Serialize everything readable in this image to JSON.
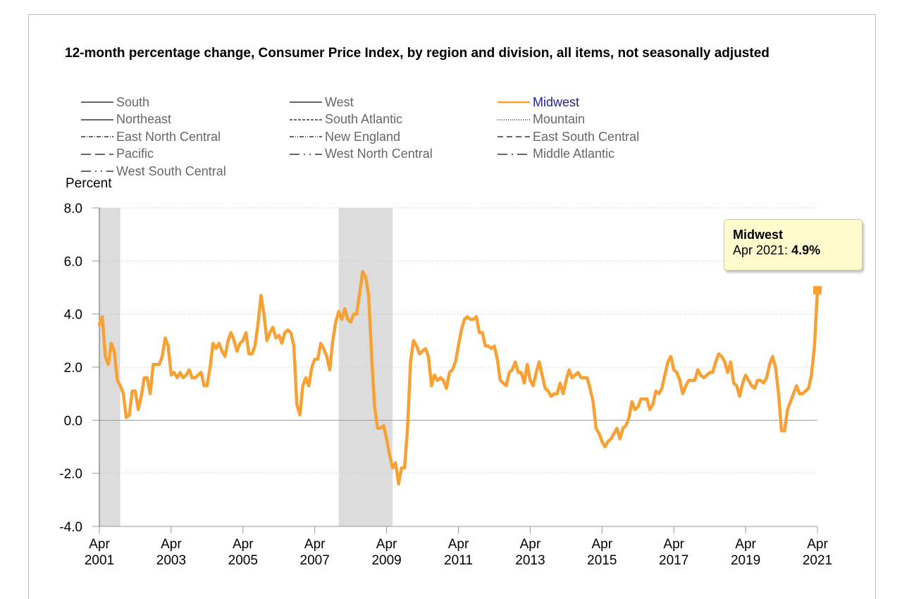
{
  "title": "12-month percentage change, Consumer Price Index, by region and division, all items, not seasonally adjusted",
  "unit_label": "Percent",
  "legend": [
    {
      "label": "South",
      "dash": "",
      "color": "#666666",
      "active": false
    },
    {
      "label": "West",
      "dash": "",
      "color": "#666666",
      "active": false
    },
    {
      "label": "Midwest",
      "dash": "",
      "color": "#f7a134",
      "active": true
    },
    {
      "label": "Northeast",
      "dash": "",
      "color": "#666666",
      "active": false
    },
    {
      "label": "South Atlantic",
      "dash": "4,2",
      "color": "#666666",
      "active": false
    },
    {
      "label": "Mountain",
      "dash": "1,2",
      "color": "#666666",
      "active": false
    },
    {
      "label": "East North Central",
      "dash": "6,2,1,2",
      "color": "#666666",
      "active": false
    },
    {
      "label": "New England",
      "dash": "6,2,1,2,1,2",
      "color": "#666666",
      "active": false
    },
    {
      "label": "East South Central",
      "dash": "8,5",
      "color": "#666666",
      "active": false
    },
    {
      "label": "Pacific",
      "dash": "14,6",
      "color": "#666666",
      "active": false
    },
    {
      "label": "West North Central",
      "dash": "14,6,2,6,2,6",
      "color": "#666666",
      "active": false
    },
    {
      "label": "Middle Atlantic",
      "dash": "14,6,2,6",
      "color": "#666666",
      "active": false
    },
    {
      "label": "West South Central",
      "dash": "14,6,2,6,2,6",
      "color": "#666666",
      "active": false
    }
  ],
  "tooltip": {
    "series": "Midwest",
    "date": "Apr 2021:",
    "value": "4.9%"
  },
  "chart_data": {
    "type": "line",
    "xlabel": "",
    "ylabel": "Percent",
    "ylim": [
      -4,
      8
    ],
    "yticks": [
      "8.0",
      "6.0",
      "4.0",
      "2.0",
      "0.0",
      "-2.0",
      "-4.0"
    ],
    "ytick_values": [
      8,
      6,
      4,
      2,
      0,
      -2,
      -4
    ],
    "xticks": [
      {
        "month": "Apr",
        "year": "2001"
      },
      {
        "month": "Apr",
        "year": "2003"
      },
      {
        "month": "Apr",
        "year": "2005"
      },
      {
        "month": "Apr",
        "year": "2007"
      },
      {
        "month": "Apr",
        "year": "2009"
      },
      {
        "month": "Apr",
        "year": "2011"
      },
      {
        "month": "Apr",
        "year": "2013"
      },
      {
        "month": "Apr",
        "year": "2015"
      },
      {
        "month": "Apr",
        "year": "2017"
      },
      {
        "month": "Apr",
        "year": "2019"
      },
      {
        "month": "Apr",
        "year": "2021"
      }
    ],
    "x_start": "2001-04",
    "x_end": "2021-04",
    "grid": true,
    "recessions": [
      {
        "start": "2001-04",
        "end": "2001-11"
      },
      {
        "start": "2007-12",
        "end": "2009-06"
      }
    ],
    "series": [
      {
        "name": "Midwest",
        "color": "#f7a134",
        "start": "2001-04",
        "frequency": "monthly",
        "values": [
          3.6,
          3.9,
          2.4,
          2.1,
          2.9,
          2.6,
          1.5,
          1.3,
          1.0,
          0.1,
          0.2,
          1.1,
          1.1,
          0.4,
          0.9,
          1.6,
          1.6,
          1.0,
          2.1,
          2.1,
          2.1,
          2.4,
          3.1,
          2.8,
          1.7,
          1.8,
          1.6,
          1.8,
          1.6,
          1.7,
          1.9,
          1.6,
          1.6,
          1.7,
          1.8,
          1.3,
          1.3,
          2.0,
          2.9,
          2.7,
          2.9,
          2.6,
          2.4,
          3.0,
          3.3,
          3.0,
          2.6,
          2.9,
          3.0,
          3.3,
          2.5,
          2.5,
          2.8,
          3.6,
          4.7,
          4.0,
          3.0,
          3.3,
          3.5,
          3.1,
          3.2,
          2.9,
          3.3,
          3.4,
          3.3,
          2.8,
          0.6,
          0.2,
          1.3,
          1.6,
          1.3,
          2.0,
          2.3,
          2.3,
          2.9,
          2.7,
          2.4,
          1.9,
          3.0,
          3.7,
          4.1,
          3.8,
          4.2,
          3.8,
          3.7,
          4.0,
          4.0,
          4.8,
          5.6,
          5.4,
          4.7,
          2.4,
          0.5,
          -0.3,
          -0.3,
          -0.2,
          -0.7,
          -1.3,
          -1.8,
          -1.6,
          -2.4,
          -1.8,
          -1.8,
          -0.3,
          2.2,
          3.0,
          2.8,
          2.5,
          2.6,
          2.7,
          2.4,
          1.3,
          1.7,
          1.5,
          1.6,
          1.5,
          1.2,
          1.8,
          1.9,
          2.2,
          2.8,
          3.4,
          3.8,
          3.9,
          3.8,
          3.8,
          3.9,
          3.3,
          3.3,
          2.8,
          2.8,
          2.7,
          2.8,
          2.3,
          1.5,
          1.4,
          1.3,
          1.8,
          1.9,
          2.2,
          1.8,
          1.8,
          1.4,
          2.1,
          1.5,
          1.3,
          1.8,
          2.2,
          1.7,
          1.2,
          1.1,
          0.9,
          1.0,
          1.0,
          1.4,
          1.0,
          1.5,
          1.9,
          1.6,
          1.7,
          1.8,
          1.6,
          1.6,
          1.6,
          1.2,
          0.7,
          -0.3,
          -0.5,
          -0.8,
          -1.0,
          -0.8,
          -0.7,
          -0.5,
          -0.3,
          -0.7,
          -0.3,
          -0.2,
          0.1,
          0.7,
          0.4,
          0.5,
          0.8,
          0.8,
          0.8,
          0.4,
          0.6,
          1.1,
          1.0,
          1.2,
          1.7,
          2.2,
          2.4,
          1.9,
          1.8,
          1.5,
          1.0,
          1.3,
          1.5,
          1.5,
          1.5,
          1.9,
          1.7,
          1.6,
          1.7,
          1.8,
          1.8,
          2.2,
          2.5,
          2.4,
          2.2,
          1.8,
          2.2,
          1.4,
          1.3,
          0.9,
          1.4,
          1.7,
          1.5,
          1.3,
          1.2,
          1.5,
          1.5,
          1.4,
          1.6,
          2.1,
          2.4,
          2.0,
          1.0,
          -0.4,
          -0.4,
          0.4,
          0.7,
          1.0,
          1.3,
          1.0,
          1.0,
          1.1,
          1.2,
          1.7,
          2.8,
          4.9
        ]
      }
    ]
  }
}
